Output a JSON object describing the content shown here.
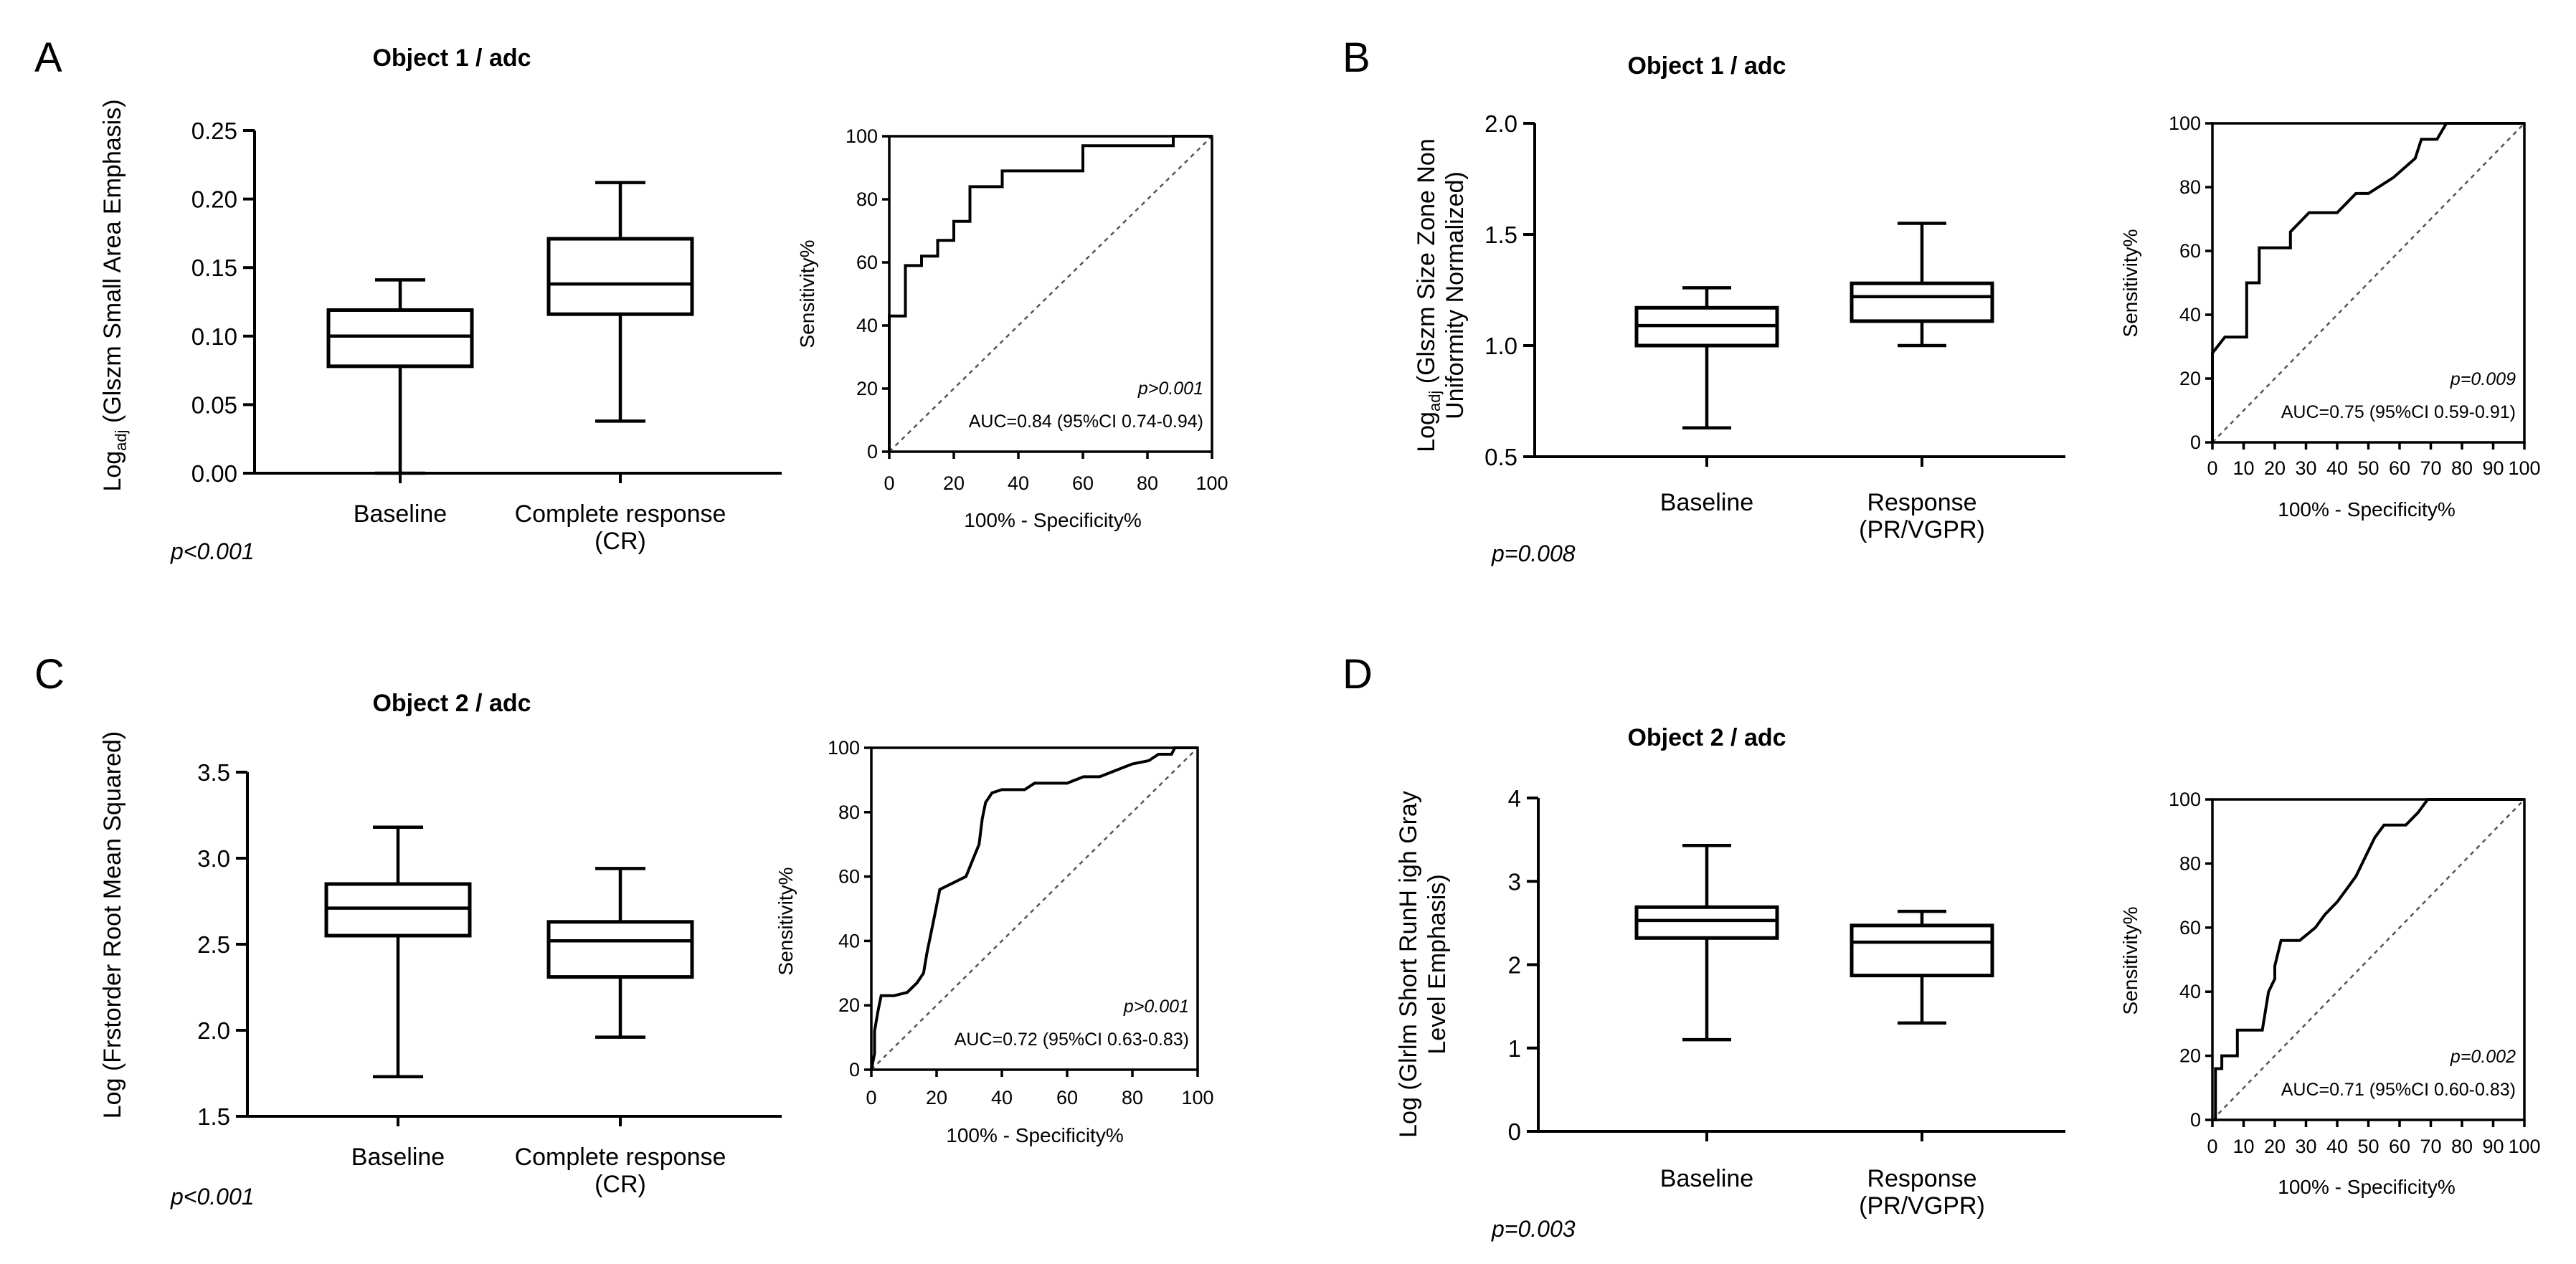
{
  "chart_data": [
    {
      "panel": "A",
      "type": "box",
      "title": "Object 1 / adc",
      "ylabel_parts": [
        "Log",
        "adj",
        " (Glszm Small Area Emphasis)"
      ],
      "ylabel_lines": [],
      "ylim": [
        0,
        0.25
      ],
      "yticks": [
        "0.00",
        "0.05",
        "0.10",
        "0.15",
        "0.20",
        "0.25"
      ],
      "categories": [
        [
          "Baseline"
        ],
        [
          "Complete response",
          "(CR)"
        ]
      ],
      "boxes": [
        {
          "name": "Baseline",
          "min": 0.0,
          "q1": 0.078,
          "median": 0.1,
          "q3": 0.119,
          "max": 0.141
        },
        {
          "name": "Complete response (CR)",
          "min": 0.038,
          "q1": 0.116,
          "median": 0.138,
          "q3": 0.171,
          "max": 0.212
        }
      ],
      "pvalue": "p<0.001",
      "roc": {
        "xlabel": "100% - Specificity%",
        "ylabel": "Sensitivity%",
        "xticks": [
          "0",
          "20",
          "40",
          "60",
          "80",
          "100"
        ],
        "yticks": [
          "0",
          "20",
          "40",
          "60",
          "80",
          "100"
        ],
        "p": "p>0.001",
        "auc": "AUC=0.84 (95%CI 0.74-0.94)",
        "points": [
          [
            0,
            0
          ],
          [
            0,
            43
          ],
          [
            5,
            43
          ],
          [
            5,
            59
          ],
          [
            10,
            59
          ],
          [
            10,
            62
          ],
          [
            15,
            62
          ],
          [
            15,
            67
          ],
          [
            20,
            67
          ],
          [
            20,
            73
          ],
          [
            25,
            73
          ],
          [
            25,
            84
          ],
          [
            35,
            84
          ],
          [
            35,
            89
          ],
          [
            60,
            89
          ],
          [
            60,
            97
          ],
          [
            88,
            97
          ],
          [
            88,
            100
          ],
          [
            100,
            100
          ]
        ]
      }
    },
    {
      "panel": "B",
      "type": "box",
      "title": "Object 1 / adc",
      "ylabel_parts": [
        "Log",
        "adj",
        " (Glszm Size Zone Non"
      ],
      "ylabel_lines": [
        "Uniformity Normalized)"
      ],
      "ylim": [
        0.5,
        2.0
      ],
      "yticks": [
        "0.5",
        "1.0",
        "1.5",
        "2.0"
      ],
      "categories": [
        [
          "Baseline"
        ],
        [
          "Response",
          "(PR/VGPR)"
        ]
      ],
      "boxes": [
        {
          "name": "Baseline",
          "min": 0.63,
          "q1": 1.0,
          "median": 1.09,
          "q3": 1.17,
          "max": 1.26
        },
        {
          "name": "Response (PR/VGPR)",
          "min": 1.0,
          "q1": 1.11,
          "median": 1.22,
          "q3": 1.28,
          "max": 1.55
        }
      ],
      "pvalue": "p=0.008",
      "roc": {
        "xlabel": "100% - Specificity%",
        "ylabel": "Sensitivity%",
        "xticks": [
          "0",
          "10",
          "20",
          "30",
          "40",
          "50",
          "60",
          "70",
          "80",
          "90",
          "100"
        ],
        "yticks": [
          "0",
          "20",
          "40",
          "60",
          "80",
          "100"
        ],
        "p": "p=0.009",
        "auc": "AUC=0.75 (95%CI 0.59-0.91)",
        "points": [
          [
            0,
            0
          ],
          [
            0,
            28
          ],
          [
            4,
            33
          ],
          [
            11,
            33
          ],
          [
            11,
            50
          ],
          [
            15,
            50
          ],
          [
            15,
            61
          ],
          [
            25,
            61
          ],
          [
            25,
            66
          ],
          [
            31,
            72
          ],
          [
            40,
            72
          ],
          [
            46,
            78
          ],
          [
            50,
            78
          ],
          [
            58,
            83
          ],
          [
            65,
            89
          ],
          [
            67,
            95
          ],
          [
            72,
            95
          ],
          [
            75,
            100
          ],
          [
            100,
            100
          ]
        ]
      }
    },
    {
      "panel": "C",
      "type": "box",
      "title": "Object 2 / adc",
      "ylabel_parts": [
        "Log (Frstorder Root Mean Squared)",
        "",
        ""
      ],
      "ylabel_lines": [],
      "ylim": [
        1.5,
        3.5
      ],
      "yticks": [
        "1.5",
        "2.0",
        "2.5",
        "3.0",
        "3.5"
      ],
      "categories": [
        [
          "Baseline"
        ],
        [
          "Complete response",
          "(CR)"
        ]
      ],
      "boxes": [
        {
          "name": "Baseline",
          "min": 1.73,
          "q1": 2.55,
          "median": 2.71,
          "q3": 2.85,
          "max": 3.18
        },
        {
          "name": "Complete response (CR)",
          "min": 1.96,
          "q1": 2.31,
          "median": 2.52,
          "q3": 2.63,
          "max": 2.94
        }
      ],
      "pvalue": "p<0.001",
      "roc": {
        "xlabel": "100% - Specificity%",
        "ylabel": "Sensitivity%",
        "xticks": [
          "0",
          "20",
          "40",
          "60",
          "80",
          "100"
        ],
        "yticks": [
          "0",
          "20",
          "40",
          "60",
          "80",
          "100"
        ],
        "p": "p>0.001",
        "auc": "AUC=0.72 (95%CI 0.63-0.83)",
        "points": [
          [
            0,
            0
          ],
          [
            1,
            5
          ],
          [
            1,
            12
          ],
          [
            2,
            18
          ],
          [
            3,
            23
          ],
          [
            7,
            23
          ],
          [
            11,
            24
          ],
          [
            14,
            27
          ],
          [
            16,
            30
          ],
          [
            17,
            36
          ],
          [
            18,
            41
          ],
          [
            19,
            46
          ],
          [
            20,
            51
          ],
          [
            21,
            56
          ],
          [
            23,
            57
          ],
          [
            25,
            58
          ],
          [
            29,
            60
          ],
          [
            31,
            65
          ],
          [
            33,
            70
          ],
          [
            34,
            78
          ],
          [
            35,
            83
          ],
          [
            37,
            86
          ],
          [
            40,
            87
          ],
          [
            47,
            87
          ],
          [
            50,
            89
          ],
          [
            60,
            89
          ],
          [
            65,
            91
          ],
          [
            70,
            91
          ],
          [
            75,
            93
          ],
          [
            80,
            95
          ],
          [
            85,
            96
          ],
          [
            88,
            98
          ],
          [
            92,
            98
          ],
          [
            93,
            100
          ],
          [
            100,
            100
          ]
        ]
      }
    },
    {
      "panel": "D",
      "type": "box",
      "title": "Object 2 / adc",
      "ylabel_parts": [
        "Log (Glrlm Short RunH igh Gray",
        "",
        ""
      ],
      "ylabel_lines": [
        "Level Emphasis)"
      ],
      "ylim": [
        0,
        4
      ],
      "yticks": [
        "0",
        "1",
        "2",
        "3",
        "4"
      ],
      "categories": [
        [
          "Baseline"
        ],
        [
          "Response",
          "(PR/VGPR)"
        ]
      ],
      "boxes": [
        {
          "name": "Baseline",
          "min": 1.1,
          "q1": 2.32,
          "median": 2.53,
          "q3": 2.69,
          "max": 3.43
        },
        {
          "name": "Response (PR/VGPR)",
          "min": 1.3,
          "q1": 1.87,
          "median": 2.27,
          "q3": 2.47,
          "max": 2.64
        }
      ],
      "pvalue": "p=0.003",
      "roc": {
        "xlabel": "100% - Specificity%",
        "ylabel": "Sensitivity%",
        "xticks": [
          "0",
          "10",
          "20",
          "30",
          "40",
          "50",
          "60",
          "70",
          "80",
          "90",
          "100"
        ],
        "yticks": [
          "0",
          "20",
          "40",
          "60",
          "80",
          "100"
        ],
        "p": "p=0.002",
        "auc": "AUC=0.71 (95%CI 0.60-0.83)",
        "points": [
          [
            0,
            0
          ],
          [
            1,
            0
          ],
          [
            1,
            16
          ],
          [
            3,
            16
          ],
          [
            3,
            20
          ],
          [
            8,
            20
          ],
          [
            8,
            28
          ],
          [
            16,
            28
          ],
          [
            18,
            40
          ],
          [
            20,
            44
          ],
          [
            20,
            48
          ],
          [
            22,
            56
          ],
          [
            28,
            56
          ],
          [
            33,
            60
          ],
          [
            36,
            64
          ],
          [
            40,
            68
          ],
          [
            43,
            72
          ],
          [
            46,
            76
          ],
          [
            48,
            80
          ],
          [
            50,
            84
          ],
          [
            52,
            88
          ],
          [
            55,
            92
          ],
          [
            62,
            92
          ],
          [
            66,
            96
          ],
          [
            69,
            100
          ],
          [
            100,
            100
          ]
        ]
      }
    }
  ]
}
